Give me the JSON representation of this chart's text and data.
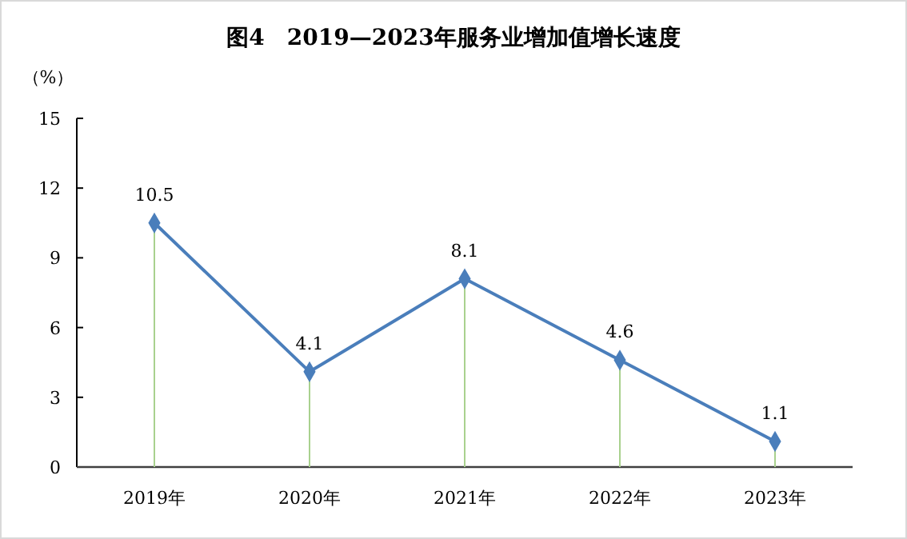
{
  "chart_data": {
    "type": "line",
    "title": "图4　2019—2023年服务业增加值增长速度",
    "ylabel": "（%）",
    "categories": [
      "2019年",
      "2020年",
      "2021年",
      "2022年",
      "2023年"
    ],
    "series": [
      {
        "color": "#4a7ebb",
        "values": [
          10.5,
          4.1,
          8.1,
          4.6,
          1.1
        ]
      }
    ],
    "ylim": [
      0,
      15
    ],
    "yticks": [
      0,
      3,
      6,
      9,
      12,
      15
    ],
    "grid": false,
    "marker": "diamond",
    "line_style": "solid",
    "data_labels": true
  }
}
